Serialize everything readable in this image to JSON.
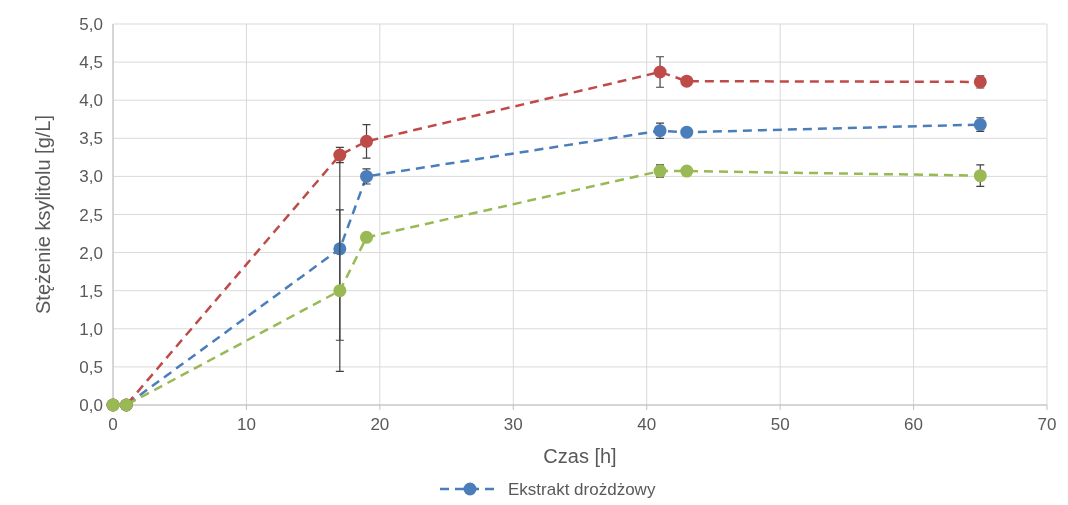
{
  "chart_data": {
    "type": "line",
    "xlabel": "Czas [h]",
    "ylabel": "Stężenie ksylitolu [g/L]",
    "x": [
      0,
      1,
      17,
      19,
      41,
      43,
      65
    ],
    "series": [
      {
        "name": "Ekstrakt drożdżowy",
        "color": "#4a7ebb",
        "values": [
          0,
          0,
          2.05,
          3.0,
          3.6,
          3.58,
          3.68
        ],
        "errors": [
          null,
          null,
          1.2,
          0.1,
          0.1,
          null,
          0.09
        ]
      },
      {
        "color": "#be4b48",
        "values": [
          0,
          0,
          3.28,
          3.46,
          4.37,
          4.25,
          4.24
        ],
        "errors": [
          null,
          null,
          0.1,
          0.22,
          0.2,
          null,
          0.08
        ]
      },
      {
        "color": "#98b954",
        "values": [
          0,
          0,
          1.5,
          2.2,
          3.07,
          3.07,
          3.01
        ],
        "errors": [
          null,
          null,
          1.06,
          null,
          0.08,
          null,
          0.14
        ]
      }
    ],
    "xlim": [
      0,
      70
    ],
    "xticks": [
      0,
      10,
      20,
      30,
      40,
      50,
      60,
      70
    ],
    "ylim": [
      0,
      5
    ],
    "yticks": [
      {
        "value": 0,
        "label": "0,0"
      },
      {
        "value": 0.5,
        "label": "0,5"
      },
      {
        "value": 1,
        "label": "1,0"
      },
      {
        "value": 1.5,
        "label": "1,5"
      },
      {
        "value": 2,
        "label": "2,0"
      },
      {
        "value": 2.5,
        "label": "2,5"
      },
      {
        "value": 3,
        "label": "3,0"
      },
      {
        "value": 3.5,
        "label": "3,5"
      },
      {
        "value": 4,
        "label": "4,0"
      },
      {
        "value": 4.5,
        "label": "4,5"
      },
      {
        "value": 5,
        "label": "5,0"
      }
    ],
    "grid": true,
    "legend": "bottom",
    "marker": "circle",
    "line_style": "dashed"
  }
}
